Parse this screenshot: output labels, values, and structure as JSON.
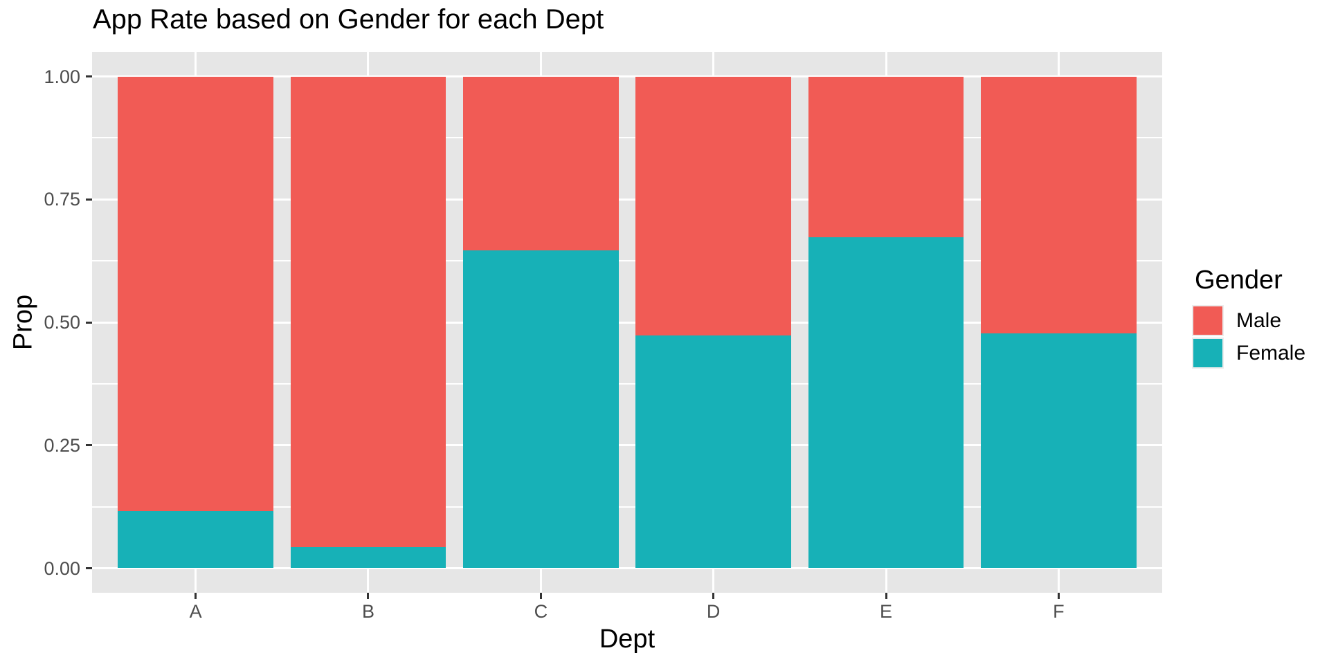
{
  "title": "App Rate based on Gender for each Dept",
  "chart_data": {
    "type": "bar",
    "stacked": true,
    "normalized": true,
    "title": "App Rate based on Gender for each Dept",
    "xlabel": "Dept",
    "ylabel": "Prop",
    "categories": [
      "A",
      "B",
      "C",
      "D",
      "E",
      "F"
    ],
    "series": [
      {
        "name": "Male",
        "color": "#F15B55",
        "values": [
          0.884,
          0.957,
          0.354,
          0.527,
          0.327,
          0.522
        ]
      },
      {
        "name": "Female",
        "color": "#17B1B7",
        "values": [
          0.116,
          0.043,
          0.646,
          0.473,
          0.673,
          0.478
        ]
      }
    ],
    "stack_order_bottom_to_top": [
      "Female",
      "Male"
    ],
    "ylim": [
      0,
      1
    ],
    "y_ticks": [
      0,
      0.25,
      0.5,
      0.75,
      1.0
    ],
    "y_tick_labels": [
      "0.00",
      "0.25",
      "0.50",
      "0.75",
      "1.00"
    ],
    "y_minor_gridlines": [
      0.125,
      0.375,
      0.625,
      0.875
    ],
    "grid": "major-and-minor-horizontal-plus-major-vertical",
    "legend_position": "right",
    "panel_background": "#E6E6E6",
    "gridline_color": "#FFFFFF",
    "tick_label_color": "#4D4D4D",
    "text_color": "#000000"
  },
  "legend": {
    "title": "Gender",
    "items": [
      {
        "label": "Male",
        "color": "#F15B55"
      },
      {
        "label": "Female",
        "color": "#17B1B7"
      }
    ]
  }
}
